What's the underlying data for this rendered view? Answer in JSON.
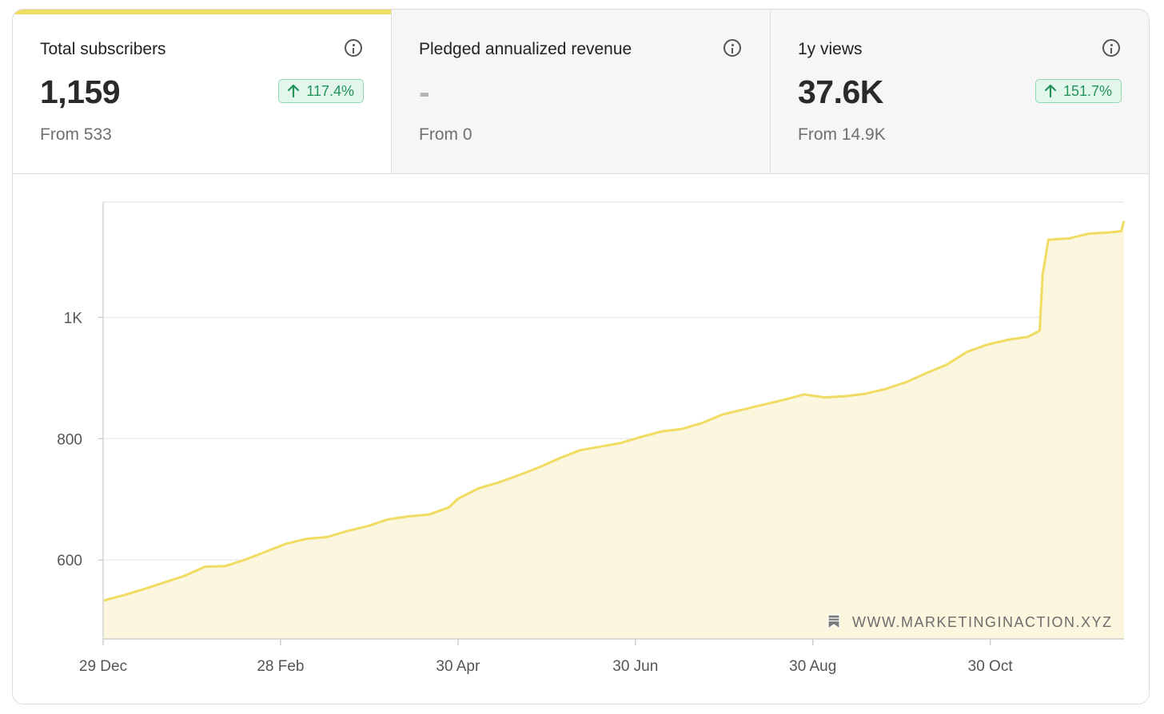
{
  "stats": [
    {
      "title": "Total subscribers",
      "value": "1,159",
      "from": "From 533",
      "change": "117.4%",
      "active": true
    },
    {
      "title": "Pledged annualized revenue",
      "value": "-",
      "from": "From 0",
      "change": "",
      "active": false
    },
    {
      "title": "1y views",
      "value": "37.6K",
      "from": "From 14.9K",
      "change": "151.7%",
      "active": false
    }
  ],
  "watermark": "WWW.MARKETINGINACTION.XYZ",
  "colors": {
    "line": "#f0dc62",
    "fill": "#fbf6dd",
    "badge_text": "#23935a",
    "badge_bg": "#e3f6ec"
  },
  "chart_data": {
    "type": "area",
    "title": "",
    "xlabel": "",
    "ylabel": "",
    "x_ticks": [
      "29 Dec",
      "28 Feb",
      "30 Apr",
      "30 Jun",
      "30 Aug",
      "30 Oct"
    ],
    "y_ticks": [
      {
        "value": 600,
        "label": "600"
      },
      {
        "value": 800,
        "label": "800"
      },
      {
        "value": 1000,
        "label": "1K"
      }
    ],
    "ylim": [
      470,
      1190
    ],
    "xlim": [
      "29 Dec",
      "15 Dec"
    ],
    "grid": true,
    "series": [
      {
        "name": "",
        "points": [
          [
            "29 Dec",
            533
          ],
          [
            "05 Jan",
            542
          ],
          [
            "12 Jan",
            552
          ],
          [
            "19 Jan",
            563
          ],
          [
            "26 Jan",
            574
          ],
          [
            "02 Feb",
            589
          ],
          [
            "09 Feb",
            590
          ],
          [
            "16 Feb",
            601
          ],
          [
            "23 Feb",
            614
          ],
          [
            "02 Mar",
            627
          ],
          [
            "09 Mar",
            635
          ],
          [
            "16 Mar",
            638
          ],
          [
            "23 Mar",
            648
          ],
          [
            "30 Mar",
            656
          ],
          [
            "06 Apr",
            667
          ],
          [
            "13 Apr",
            672
          ],
          [
            "20 Apr",
            675
          ],
          [
            "27 Apr",
            687
          ],
          [
            "30 Apr",
            701
          ],
          [
            "07 May",
            718
          ],
          [
            "14 May",
            728
          ],
          [
            "21 May",
            740
          ],
          [
            "28 May",
            753
          ],
          [
            "04 Jun",
            768
          ],
          [
            "11 Jun",
            781
          ],
          [
            "18 Jun",
            787
          ],
          [
            "25 Jun",
            793
          ],
          [
            "02 Jul",
            803
          ],
          [
            "09 Jul",
            812
          ],
          [
            "16 Jul",
            816
          ],
          [
            "23 Jul",
            826
          ],
          [
            "30 Jul",
            840
          ],
          [
            "06 Aug",
            848
          ],
          [
            "13 Aug",
            856
          ],
          [
            "20 Aug",
            864
          ],
          [
            "27 Aug",
            873
          ],
          [
            "03 Sep",
            868
          ],
          [
            "10 Sep",
            870
          ],
          [
            "17 Sep",
            874
          ],
          [
            "24 Sep",
            882
          ],
          [
            "01 Oct",
            893
          ],
          [
            "08 Oct",
            908
          ],
          [
            "15 Oct",
            922
          ],
          [
            "22 Oct",
            943
          ],
          [
            "29 Oct",
            955
          ],
          [
            "05 Nov",
            963
          ],
          [
            "12 Nov",
            968
          ],
          [
            "16 Nov",
            978
          ],
          [
            "17 Nov",
            1070
          ],
          [
            "19 Nov",
            1128
          ],
          [
            "26 Nov",
            1130
          ],
          [
            "03 Dec",
            1138
          ],
          [
            "10 Dec",
            1140
          ],
          [
            "14 Dec",
            1142
          ],
          [
            "15 Dec",
            1159
          ]
        ]
      }
    ]
  }
}
